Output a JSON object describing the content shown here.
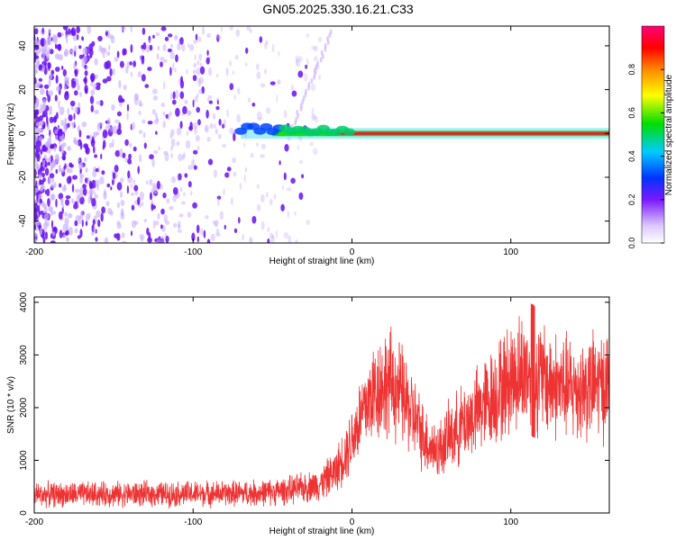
{
  "title": "GN05.2025.330.16.21.C33",
  "chart_data": [
    {
      "type": "heatmap",
      "xlabel": "Height of straight line (km)",
      "ylabel": "Frequency (Hz)",
      "xlim": [
        -200,
        162
      ],
      "ylim": [
        -50,
        49
      ],
      "xticks": [
        -200,
        -100,
        0,
        100
      ],
      "yticks": [
        -40,
        -20,
        0,
        20,
        40
      ],
      "colorbar": {
        "label": "Normalized spectral amplitude",
        "range": [
          0,
          1
        ],
        "ticks": [
          "0.0",
          "0.2",
          "0.4",
          "0.6",
          "0.8"
        ]
      },
      "features": {
        "noise_region_x": [
          -200,
          -20
        ],
        "tone_frequency_hz": 0,
        "tone_x_range": [
          -70,
          162
        ],
        "tone_max_amplitude": 1.0
      }
    },
    {
      "type": "line",
      "xlabel": "Height of straight line (km)",
      "ylabel": "SNR (10 * v/v)",
      "xlim": [
        -200,
        162
      ],
      "ylim": [
        0,
        4100
      ],
      "xticks": [
        -200,
        -100,
        0,
        100
      ],
      "yticks": [
        0,
        1000,
        2000,
        3000,
        4000
      ],
      "color": "#ee3333",
      "series": [
        {
          "x": [
            -200,
            -180,
            -160,
            -140,
            -120,
            -100,
            -80,
            -60,
            -50,
            -40,
            -30,
            -20,
            -10,
            0,
            5,
            10,
            15,
            20,
            25,
            30,
            35,
            40,
            45,
            50,
            55,
            60,
            70,
            80,
            90,
            100,
            105,
            110,
            114,
            120,
            130,
            140,
            150,
            162
          ],
          "y": [
            350,
            350,
            355,
            360,
            360,
            365,
            370,
            380,
            400,
            430,
            480,
            550,
            800,
            1400,
            1800,
            2100,
            2350,
            2450,
            2450,
            2300,
            2050,
            1750,
            1450,
            1250,
            1200,
            1400,
            1700,
            1950,
            2250,
            2550,
            2650,
            2700,
            2650,
            2550,
            2400,
            2350,
            2400,
            2450
          ]
        }
      ]
    }
  ]
}
